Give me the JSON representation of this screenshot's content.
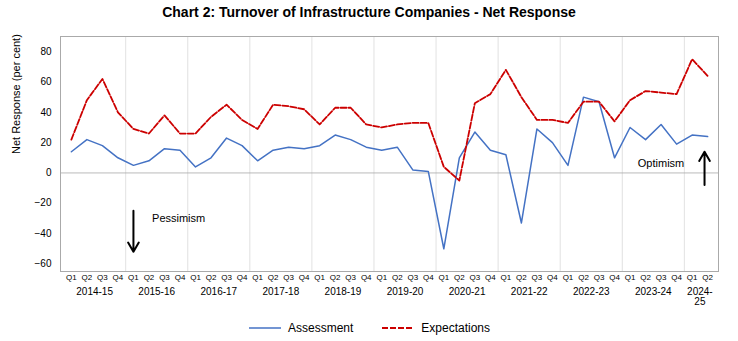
{
  "chart_data": {
    "type": "line",
    "title": "Chart 2: Turnover of Infrastructure Companies - Net Response",
    "ylabel": "Net Response (per cent)",
    "categories": [
      "Q1",
      "Q2",
      "Q3",
      "Q4",
      "Q1",
      "Q2",
      "Q3",
      "Q4",
      "Q1",
      "Q2",
      "Q3",
      "Q4",
      "Q1",
      "Q2",
      "Q3",
      "Q4",
      "Q1",
      "Q2",
      "Q3",
      "Q4",
      "Q1",
      "Q2",
      "Q3",
      "Q4",
      "Q1",
      "Q2",
      "Q3",
      "Q4",
      "Q1",
      "Q2",
      "Q3",
      "Q4",
      "Q1",
      "Q2",
      "Q3",
      "Q4",
      "Q1",
      "Q2",
      "Q3",
      "Q4",
      "Q1",
      "Q2"
    ],
    "year_labels": [
      "2014-15",
      "2015-16",
      "2016-17",
      "2017-18",
      "2018-19",
      "2019-20",
      "2020-21",
      "2021-22",
      "2022-23",
      "2023-24",
      "2024-\n25"
    ],
    "series": [
      {
        "name": "Assessment",
        "color": "#4472C4",
        "line_style": "solid",
        "values": [
          14,
          22,
          18,
          10,
          5,
          8,
          16,
          15,
          4,
          10,
          23,
          18,
          8,
          15,
          17,
          16,
          18,
          25,
          22,
          17,
          15,
          17,
          2,
          1,
          -50,
          10,
          27,
          15,
          12,
          -33,
          29,
          20,
          5,
          50,
          47,
          10,
          30,
          22,
          32,
          19,
          25,
          24
        ]
      },
      {
        "name": "Expectations",
        "color": "#CC0000",
        "line_style": "dashed",
        "values": [
          22,
          48,
          62,
          40,
          29,
          26,
          38,
          26,
          26,
          37,
          45,
          35,
          29,
          45,
          44,
          42,
          32,
          43,
          43,
          32,
          30,
          32,
          33,
          33,
          4,
          -5,
          46,
          52,
          68,
          50,
          35,
          35,
          33,
          47,
          47,
          34,
          48,
          54,
          53,
          52,
          75,
          64
        ]
      }
    ],
    "ylim": [
      -65,
      90
    ],
    "yticks": [
      -60,
      -40,
      -20,
      0,
      20,
      40,
      60,
      80
    ],
    "legend": "bottom",
    "annotations": [
      {
        "text": "Pessimism",
        "x": 5.2,
        "y": -30,
        "arrow": {
          "x": 4,
          "y_start": -25,
          "y_end": -52
        }
      },
      {
        "text": "Optimism",
        "x": 36.5,
        "y": 6,
        "arrow": {
          "x": 40.8,
          "y_start": -8,
          "y_end": 14
        }
      }
    ]
  }
}
